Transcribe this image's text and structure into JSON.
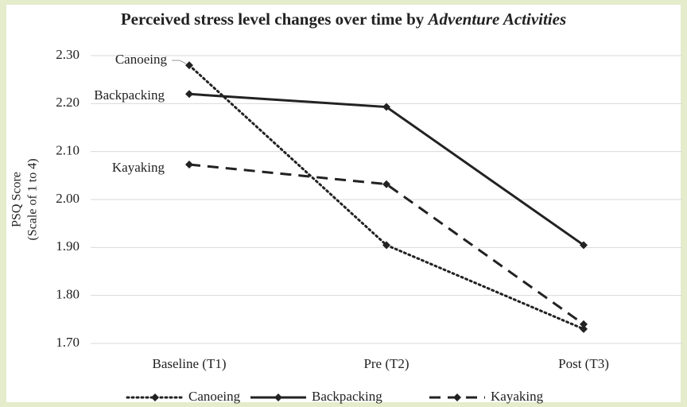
{
  "chart_data": {
    "type": "line",
    "title": "Perceived stress level changes over time by",
    "title_emphasis": "Adventure Activities",
    "y_label": "PSQ Score",
    "y_label_sub": "(Scale of 1 to 4)",
    "categories": [
      "Baseline (T1)",
      "Pre (T2)",
      "Post (T3)"
    ],
    "series": [
      {
        "name": "Canoeing",
        "color": "#222222",
        "dash": "dotted",
        "values": [
          2.28,
          1.905,
          1.73
        ]
      },
      {
        "name": "Backpacking",
        "color": "#222222",
        "dash": "solid",
        "values": [
          2.22,
          2.193,
          1.905
        ]
      },
      {
        "name": "Kayaking",
        "color": "#222222",
        "dash": "dashed",
        "values": [
          2.073,
          2.032,
          1.74
        ]
      }
    ],
    "ylim": [
      1.7,
      2.3
    ],
    "yticks": [
      {
        "value": 1.7,
        "label": "1.70"
      },
      {
        "value": 1.8,
        "label": "1.80"
      },
      {
        "value": 1.9,
        "label": "1.90"
      },
      {
        "value": 2.0,
        "label": "2.00"
      },
      {
        "value": 2.1,
        "label": "2.10"
      },
      {
        "value": 2.2,
        "label": "2.20"
      },
      {
        "value": 2.3,
        "label": "2.30"
      }
    ],
    "grid": true,
    "legend": "bottom"
  }
}
